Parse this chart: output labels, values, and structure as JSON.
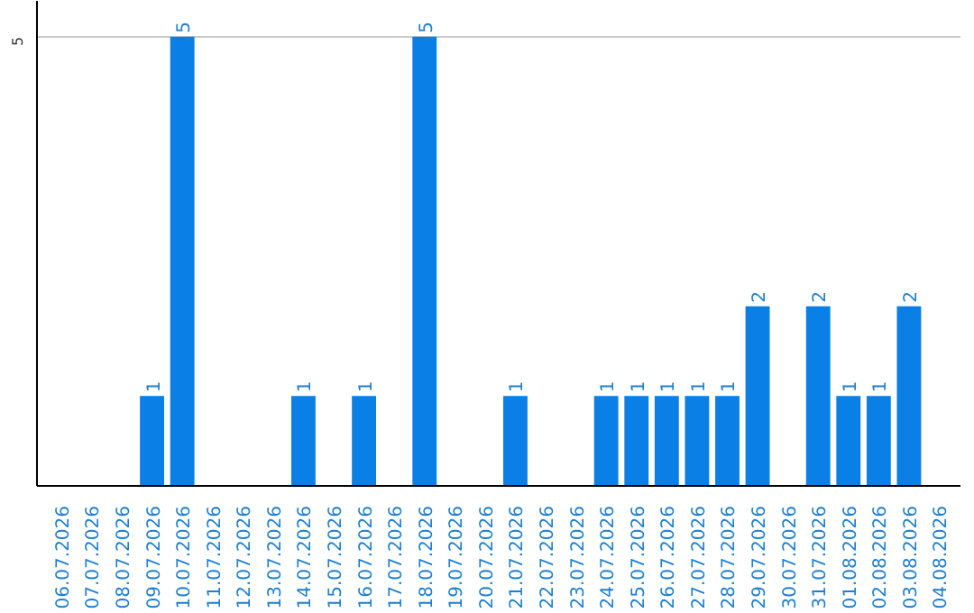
{
  "chart_data": {
    "type": "bar",
    "categories": [
      "06.07.2026",
      "07.07.2026",
      "08.07.2026",
      "09.07.2026",
      "10.07.2026",
      "11.07.2026",
      "12.07.2026",
      "13.07.2026",
      "14.07.2026",
      "15.07.2026",
      "16.07.2026",
      "17.07.2026",
      "18.07.2026",
      "19.07.2026",
      "20.07.2026",
      "21.07.2026",
      "22.07.2026",
      "23.07.2026",
      "24.07.2026",
      "25.07.2026",
      "26.07.2026",
      "27.07.2026",
      "28.07.2026",
      "29.07.2026",
      "30.07.2026",
      "31.07.2026",
      "01.08.2026",
      "02.08.2026",
      "03.08.2026",
      "04.08.2026"
    ],
    "series": [
      {
        "color": "#0a7fe6",
        "values": [
          0,
          0,
          0,
          1,
          5,
          0,
          0,
          0,
          1,
          0,
          1,
          0,
          5,
          0,
          0,
          1,
          0,
          0,
          1,
          1,
          1,
          1,
          1,
          2,
          0,
          2,
          1,
          1,
          2,
          0
        ],
        "value_labels": [
          null,
          null,
          null,
          "1",
          "5",
          null,
          null,
          null,
          "1",
          null,
          "1",
          null,
          "5",
          null,
          null,
          "1",
          null,
          null,
          "1",
          "1",
          "1",
          "1",
          "1",
          "2",
          null,
          "2",
          "1",
          "1",
          "2",
          null
        ]
      }
    ],
    "ylim": [
      0,
      5.4
    ],
    "yticks": [
      5
    ],
    "grid": "y"
  }
}
